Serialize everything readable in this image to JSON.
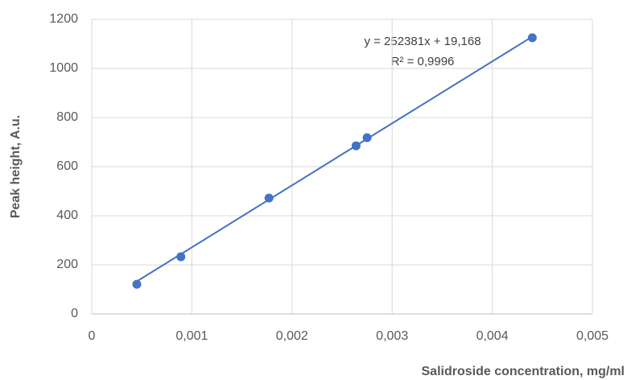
{
  "chart_data": {
    "type": "scatter",
    "y_label": "Peak height, A.u.",
    "x_label": "Salidroside concentration, mg/ml",
    "x": [
      0.00045,
      0.00089,
      0.00177,
      0.00264,
      0.00275,
      0.0044
    ],
    "series": [
      {
        "name": "Peak height",
        "color": "#4472c4",
        "values": [
          121,
          233,
          472,
          685,
          718,
          1125
        ]
      }
    ],
    "trendline": {
      "slope": 252381,
      "intercept": 19.168,
      "label": "y = 252381x  + 19,168"
    },
    "r_squared": {
      "value": 0.9996,
      "label": "R² = 0,9996"
    },
    "xlim": [
      0,
      0.005
    ],
    "xticks": [
      0,
      {
        "value": 0.001,
        "label": "0,001"
      },
      {
        "value": 0.002,
        "label": "0,002"
      },
      {
        "value": 0.003,
        "label": "0,003"
      },
      {
        "value": 0.004,
        "label": "0,004"
      },
      {
        "value": 0.005,
        "label": "0,005"
      }
    ],
    "ylim": [
      0,
      1200
    ],
    "yticks": [
      0,
      200,
      400,
      600,
      800,
      1000,
      1200
    ],
    "grid": true
  }
}
